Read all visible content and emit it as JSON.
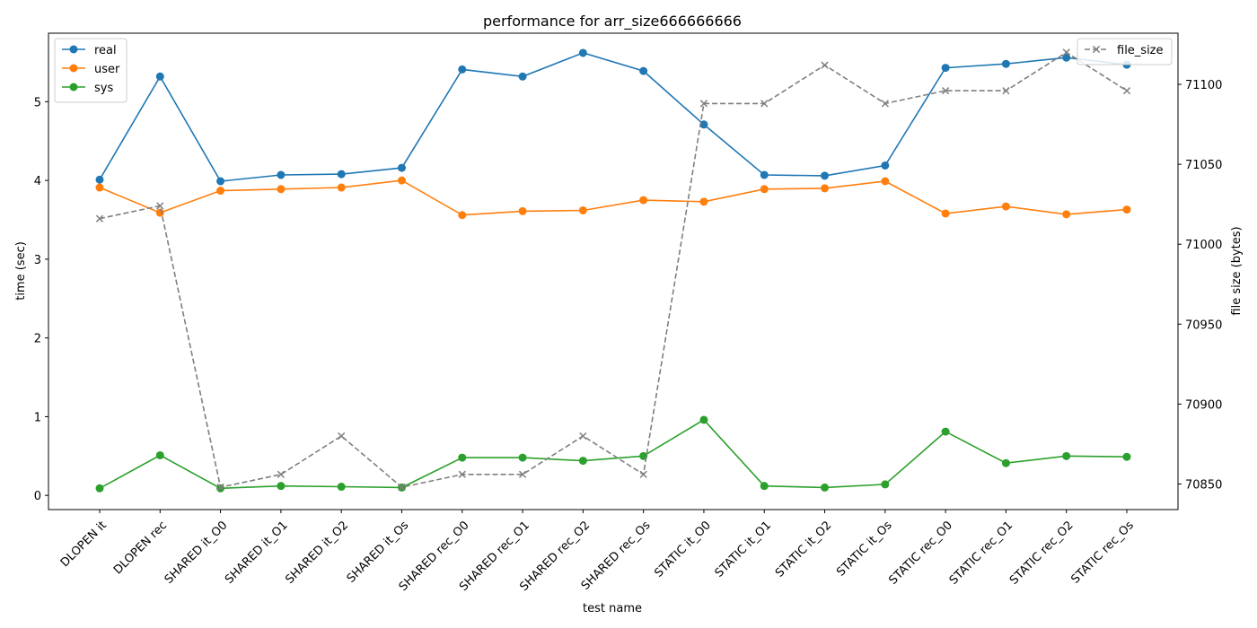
{
  "chart_data": {
    "type": "line",
    "title": "performance for arr_size666666666",
    "xlabel": "test name",
    "ylabel": "time (sec)",
    "y2label": "file size (bytes)",
    "categories": [
      "DLOPEN it",
      "DLOPEN rec",
      "SHARED it_O0",
      "SHARED it_O1",
      "SHARED it_O2",
      "SHARED it_Os",
      "SHARED rec_O0",
      "SHARED rec_O1",
      "SHARED rec_O2",
      "SHARED rec_Os",
      "STATIC it_O0",
      "STATIC it_O1",
      "STATIC it_O2",
      "STATIC it_Os",
      "STATIC rec_O0",
      "STATIC rec_O1",
      "STATIC rec_O2",
      "STATIC rec_Os"
    ],
    "ylim": [
      -0.18,
      5.87
    ],
    "y_ticks": [
      0,
      1,
      2,
      3,
      4,
      5
    ],
    "y2lim": [
      70834,
      71132
    ],
    "y2_ticks": [
      70850,
      70900,
      70950,
      71000,
      71050,
      71100
    ],
    "grid": false,
    "legend_left_position": "upper left",
    "legend_right_position": "upper right",
    "series": [
      {
        "name": "real",
        "color": "#1f77b4",
        "axis": "left",
        "marker": "circle",
        "linestyle": "solid",
        "values": [
          4.01,
          5.32,
          3.99,
          4.07,
          4.08,
          4.16,
          5.41,
          5.32,
          5.62,
          5.39,
          4.71,
          4.07,
          4.06,
          4.19,
          5.43,
          5.48,
          5.56,
          5.47
        ]
      },
      {
        "name": "user",
        "color": "#ff7f0e",
        "axis": "left",
        "marker": "circle",
        "linestyle": "solid",
        "values": [
          3.91,
          3.59,
          3.87,
          3.89,
          3.91,
          4.0,
          3.56,
          3.61,
          3.62,
          3.75,
          3.73,
          3.89,
          3.9,
          3.99,
          3.58,
          3.67,
          3.57,
          3.63
        ]
      },
      {
        "name": "sys",
        "color": "#2ca02c",
        "axis": "left",
        "marker": "circle",
        "linestyle": "solid",
        "values": [
          0.09,
          0.51,
          0.09,
          0.12,
          0.11,
          0.1,
          0.48,
          0.48,
          0.44,
          0.5,
          0.96,
          0.12,
          0.1,
          0.14,
          0.81,
          0.41,
          0.5,
          0.49
        ]
      },
      {
        "name": "file_size",
        "color": "#7f7f7f",
        "axis": "right",
        "marker": "x",
        "linestyle": "dashed",
        "values": [
          71016,
          71024,
          70848,
          70856,
          70880,
          70848,
          70856,
          70856,
          70880,
          70856,
          71088,
          71088,
          71112,
          71088,
          71096,
          71096,
          71120,
          71096
        ]
      }
    ]
  }
}
